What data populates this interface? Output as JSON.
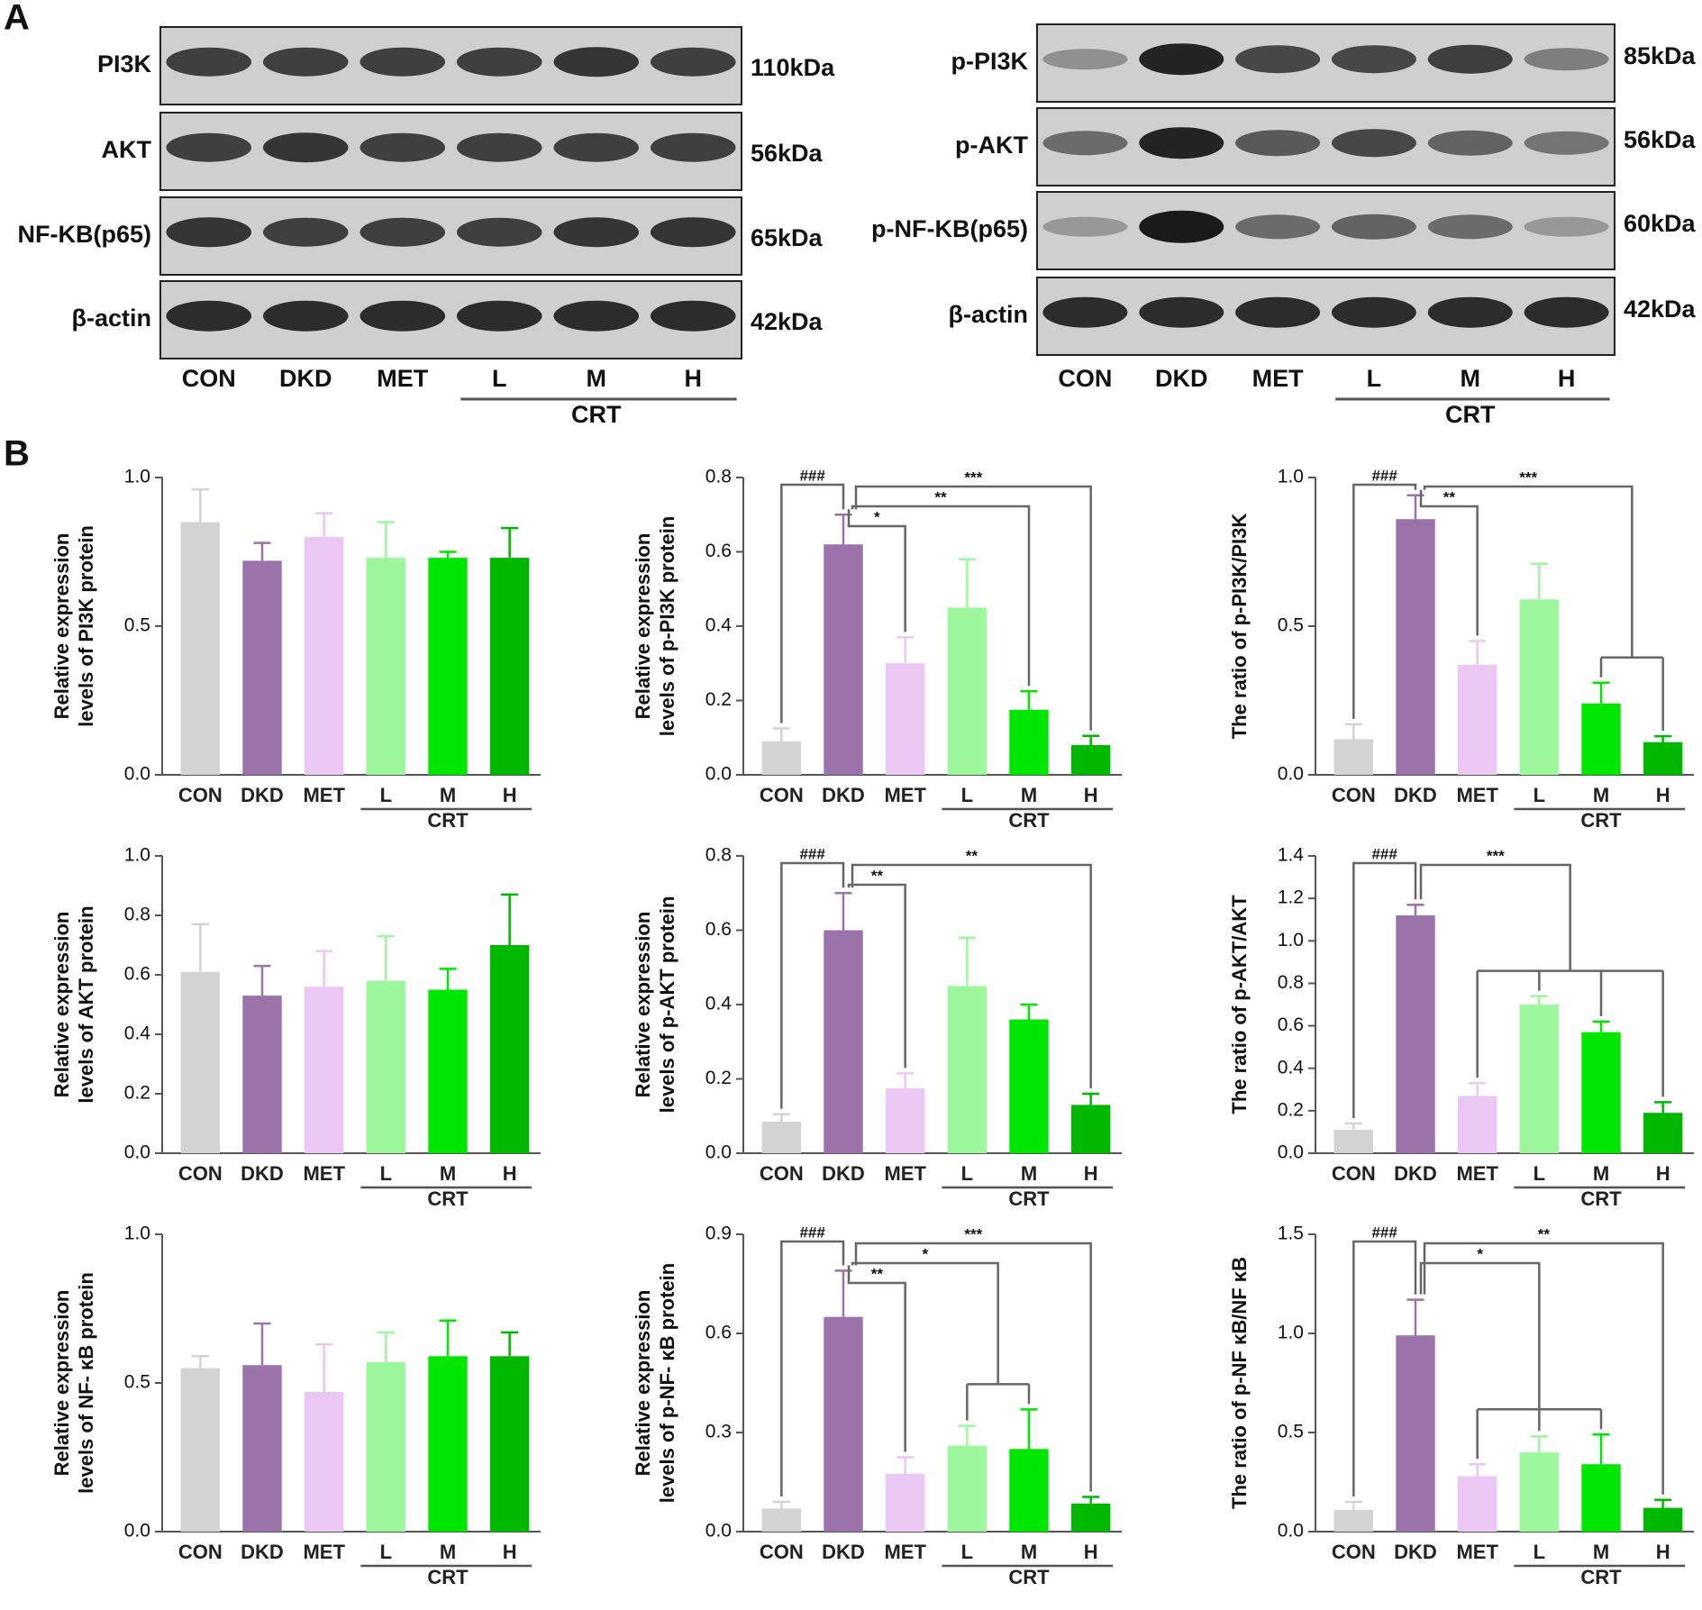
{
  "panel_labels": [
    "A",
    "B"
  ],
  "blots": [
    {
      "rows": [
        {
          "label": "PI3K",
          "size": "110kDa"
        },
        {
          "label": "AKT",
          "size": "56kDa"
        },
        {
          "label": "NF-KB(p65)",
          "size": "65kDa"
        },
        {
          "label": "β-actin",
          "size": "42kDa"
        }
      ],
      "lanes": [
        "CON",
        "DKD",
        "MET",
        "L",
        "M",
        "H"
      ],
      "group_label": "CRT"
    },
    {
      "rows": [
        {
          "label": "p-PI3K",
          "size": "85kDa"
        },
        {
          "label": "p-AKT",
          "size": "56kDa"
        },
        {
          "label": "p-NF-KB(p65)",
          "size": "60kDa"
        },
        {
          "label": "β-actin",
          "size": "42kDa"
        }
      ],
      "lanes": [
        "CON",
        "DKD",
        "MET",
        "L",
        "M",
        "H"
      ],
      "group_label": "CRT"
    }
  ],
  "chart_data": [
    {
      "type": "bar",
      "ylabel": [
        "Relative expression",
        "levels of PI3K protein"
      ],
      "categories": [
        "CON",
        "DKD",
        "MET",
        "L",
        "M",
        "H"
      ],
      "group_label": "CRT",
      "colors": [
        "#d3d3d3",
        "#9b72aa",
        "#eac8f3",
        "#9df79d",
        "#00e600",
        "#00b800"
      ],
      "values": [
        0.85,
        0.72,
        0.8,
        0.73,
        0.73,
        0.73
      ],
      "errors": [
        0.11,
        0.06,
        0.08,
        0.12,
        0.02,
        0.1
      ],
      "ylim": [
        0,
        1.0
      ],
      "yticks": [
        {
          "value": 0,
          "label": "0.0"
        },
        0.5,
        {
          "value": 1,
          "label": "1.0"
        }
      ],
      "brackets": []
    },
    {
      "type": "bar",
      "ylabel": [
        "Relative expression",
        "levels of p-PI3K protein"
      ],
      "categories": [
        "CON",
        "DKD",
        "MET",
        "L",
        "M",
        "H"
      ],
      "group_label": "CRT",
      "colors": [
        "#d3d3d3",
        "#9b72aa",
        "#eac8f3",
        "#9df79d",
        "#00e600",
        "#00b800"
      ],
      "values": [
        0.09,
        0.62,
        0.3,
        0.45,
        0.175,
        0.08
      ],
      "errors": [
        0.035,
        0.08,
        0.07,
        0.13,
        0.05,
        0.025
      ],
      "ylim": [
        0,
        0.8
      ],
      "yticks": [
        {
          "value": 0,
          "label": "0.0"
        },
        0.2,
        0.4,
        0.6,
        0.8
      ],
      "brackets": [
        {
          "label": "###",
          "from": "CON",
          "to": [
            "DKD"
          ]
        },
        {
          "label": "*",
          "from": "DKD",
          "to": [
            "MET"
          ]
        },
        {
          "label": "**",
          "from": "DKD",
          "to": [
            "M"
          ]
        },
        {
          "label": "***",
          "from": "DKD",
          "to": [
            "H"
          ]
        }
      ]
    },
    {
      "type": "bar",
      "ylabel": [
        "The ratio of p-PI3K/PI3K"
      ],
      "categories": [
        "CON",
        "DKD",
        "MET",
        "L",
        "M",
        "H"
      ],
      "group_label": "CRT",
      "colors": [
        "#d3d3d3",
        "#9b72aa",
        "#eac8f3",
        "#9df79d",
        "#00e600",
        "#00b800"
      ],
      "values": [
        0.12,
        0.86,
        0.37,
        0.59,
        0.24,
        0.11
      ],
      "errors": [
        0.05,
        0.08,
        0.08,
        0.12,
        0.07,
        0.02
      ],
      "ylim": [
        0,
        1.0
      ],
      "yticks": [
        {
          "value": 0,
          "label": "0.0"
        },
        0.5,
        {
          "value": 1,
          "label": "1.0"
        }
      ],
      "brackets": [
        {
          "label": "###",
          "from": "CON",
          "to": [
            "DKD"
          ]
        },
        {
          "label": "**",
          "from": "DKD",
          "to": [
            "MET"
          ]
        },
        {
          "label": "***",
          "from": "DKD",
          "to": [
            "M",
            "H"
          ]
        }
      ]
    },
    {
      "type": "bar",
      "ylabel": [
        "Relative expression",
        "levels of AKT protein"
      ],
      "categories": [
        "CON",
        "DKD",
        "MET",
        "L",
        "M",
        "H"
      ],
      "group_label": "CRT",
      "colors": [
        "#d3d3d3",
        "#9b72aa",
        "#eac8f3",
        "#9df79d",
        "#00e600",
        "#00b800"
      ],
      "values": [
        0.61,
        0.53,
        0.56,
        0.58,
        0.55,
        0.7
      ],
      "errors": [
        0.16,
        0.1,
        0.12,
        0.15,
        0.07,
        0.17
      ],
      "ylim": [
        0,
        1.0
      ],
      "yticks": [
        {
          "value": 0,
          "label": "0.0"
        },
        0.2,
        0.4,
        0.6,
        0.8,
        {
          "value": 1,
          "label": "1.0"
        }
      ],
      "brackets": []
    },
    {
      "type": "bar",
      "ylabel": [
        "Relative expression",
        "levels of p-AKT protein"
      ],
      "categories": [
        "CON",
        "DKD",
        "MET",
        "L",
        "M",
        "H"
      ],
      "group_label": "CRT",
      "colors": [
        "#d3d3d3",
        "#9b72aa",
        "#eac8f3",
        "#9df79d",
        "#00e600",
        "#00b800"
      ],
      "values": [
        0.085,
        0.6,
        0.175,
        0.45,
        0.36,
        0.13
      ],
      "errors": [
        0.02,
        0.1,
        0.04,
        0.13,
        0.04,
        0.03
      ],
      "ylim": [
        0,
        0.8
      ],
      "yticks": [
        {
          "value": 0,
          "label": "0.0"
        },
        0.2,
        0.4,
        0.6,
        0.8
      ],
      "brackets": [
        {
          "label": "###",
          "from": "CON",
          "to": [
            "DKD"
          ]
        },
        {
          "label": "**",
          "from": "DKD",
          "to": [
            "MET"
          ]
        },
        {
          "label": "**",
          "from": "DKD",
          "to": [
            "H"
          ]
        }
      ]
    },
    {
      "type": "bar",
      "ylabel": [
        "The ratio of p-AKT/AKT"
      ],
      "categories": [
        "CON",
        "DKD",
        "MET",
        "L",
        "M",
        "H"
      ],
      "group_label": "CRT",
      "colors": [
        "#d3d3d3",
        "#9b72aa",
        "#eac8f3",
        "#9df79d",
        "#00e600",
        "#00b800"
      ],
      "values": [
        0.11,
        1.12,
        0.27,
        0.7,
        0.57,
        0.19
      ],
      "errors": [
        0.03,
        0.05,
        0.06,
        0.04,
        0.05,
        0.05
      ],
      "ylim": [
        0,
        1.4
      ],
      "yticks": [
        {
          "value": 0,
          "label": "0.0"
        },
        0.2,
        0.4,
        0.6,
        0.8,
        {
          "value": 1,
          "label": "1.0"
        },
        1.2,
        1.4
      ],
      "brackets": [
        {
          "label": "###",
          "from": "CON",
          "to": [
            "DKD"
          ]
        },
        {
          "label": "***",
          "from": "DKD",
          "to": [
            "MET",
            "L",
            "M",
            "H"
          ]
        }
      ]
    },
    {
      "type": "bar",
      "ylabel": [
        "Relative expression",
        "levels of NF- κB protein"
      ],
      "categories": [
        "CON",
        "DKD",
        "MET",
        "L",
        "M",
        "H"
      ],
      "group_label": "CRT",
      "colors": [
        "#d3d3d3",
        "#9b72aa",
        "#eac8f3",
        "#9df79d",
        "#00e600",
        "#00b800"
      ],
      "values": [
        0.55,
        0.56,
        0.47,
        0.57,
        0.59,
        0.59
      ],
      "errors": [
        0.04,
        0.14,
        0.16,
        0.1,
        0.12,
        0.08
      ],
      "ylim": [
        0,
        1.0
      ],
      "yticks": [
        {
          "value": 0,
          "label": "0.0"
        },
        0.5,
        {
          "value": 1,
          "label": "1.0"
        }
      ],
      "brackets": []
    },
    {
      "type": "bar",
      "ylabel": [
        "Relative expression",
        "levels of p-NF- κB protein"
      ],
      "categories": [
        "CON",
        "DKD",
        "MET",
        "L",
        "M",
        "H"
      ],
      "group_label": "CRT",
      "colors": [
        "#d3d3d3",
        "#9b72aa",
        "#eac8f3",
        "#9df79d",
        "#00e600",
        "#00b800"
      ],
      "values": [
        0.07,
        0.65,
        0.175,
        0.26,
        0.25,
        0.085
      ],
      "errors": [
        0.02,
        0.14,
        0.05,
        0.06,
        0.12,
        0.02
      ],
      "ylim": [
        0,
        0.9
      ],
      "yticks": [
        {
          "value": 0,
          "label": "0.0"
        },
        0.3,
        0.6,
        0.9
      ],
      "brackets": [
        {
          "label": "###",
          "from": "CON",
          "to": [
            "DKD"
          ]
        },
        {
          "label": "**",
          "from": "DKD",
          "to": [
            "MET"
          ]
        },
        {
          "label": "*",
          "from": "DKD",
          "to": [
            "L",
            "M"
          ]
        },
        {
          "label": "***",
          "from": "DKD",
          "to": [
            "H"
          ]
        }
      ]
    },
    {
      "type": "bar",
      "ylabel": [
        "The ratio of p-NF κB/NF κB"
      ],
      "categories": [
        "CON",
        "DKD",
        "MET",
        "L",
        "M",
        "H"
      ],
      "group_label": "CRT",
      "colors": [
        "#d3d3d3",
        "#9b72aa",
        "#eac8f3",
        "#9df79d",
        "#00e600",
        "#00b800"
      ],
      "values": [
        0.11,
        0.99,
        0.28,
        0.4,
        0.34,
        0.12
      ],
      "errors": [
        0.04,
        0.18,
        0.06,
        0.08,
        0.15,
        0.04
      ],
      "ylim": [
        0,
        1.5
      ],
      "yticks": [
        {
          "value": 0,
          "label": "0.0"
        },
        0.5,
        {
          "value": 1,
          "label": "1.0"
        },
        1.5
      ],
      "brackets": [
        {
          "label": "###",
          "from": "CON",
          "to": [
            "DKD"
          ]
        },
        {
          "label": "*",
          "from": "DKD",
          "to": [
            "MET",
            "L",
            "M"
          ]
        },
        {
          "label": "**",
          "from": "DKD",
          "to": [
            "H"
          ]
        }
      ]
    }
  ]
}
